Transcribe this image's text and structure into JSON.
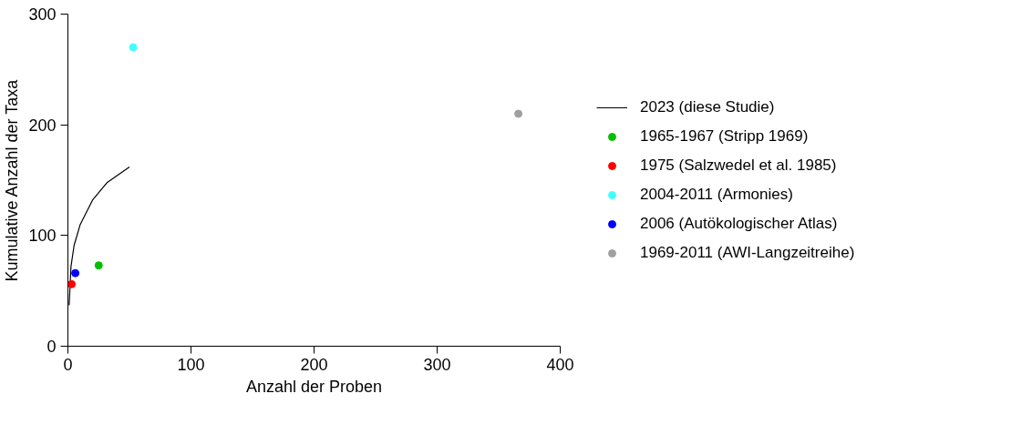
{
  "chart_data": {
    "type": "scatter",
    "xlabel": "Anzahl der Proben",
    "ylabel": "Kumulative Anzahl der Taxa",
    "xlim": [
      0,
      400
    ],
    "ylim": [
      0,
      300
    ],
    "xticks": [
      0,
      100,
      200,
      300,
      400
    ],
    "yticks": [
      0,
      100,
      200,
      300
    ],
    "grid": false,
    "legend": "right",
    "series": [
      {
        "name": "2023 (diese Studie)",
        "type": "line",
        "color": "#000000",
        "marker": "none",
        "x": [
          1,
          2.5,
          5,
          10,
          20,
          32,
          50
        ],
        "values": [
          37,
          72,
          91,
          110,
          132,
          148,
          162
        ]
      },
      {
        "name": "1965-1967 (Stripp 1969)",
        "color": "#00c000",
        "marker": "circle",
        "x": [
          25
        ],
        "values": [
          73
        ]
      },
      {
        "name": "1975 (Salzwedel et al. 1985)",
        "color": "#ff0000",
        "marker": "circle",
        "x": [
          3
        ],
        "values": [
          56
        ]
      },
      {
        "name": "2004-2011 (Armonies)",
        "color": "#40ffff",
        "marker": "circle",
        "x": [
          53
        ],
        "values": [
          270
        ]
      },
      {
        "name": "2006 (Autökologischer Atlas)",
        "color": "#0000ff",
        "marker": "circle",
        "x": [
          6
        ],
        "values": [
          66
        ]
      },
      {
        "name": "1969-2011 (AWI-Langzeitreihe)",
        "color": "#a0a0a0",
        "marker": "circle",
        "x": [
          366
        ],
        "values": [
          210
        ]
      }
    ]
  }
}
